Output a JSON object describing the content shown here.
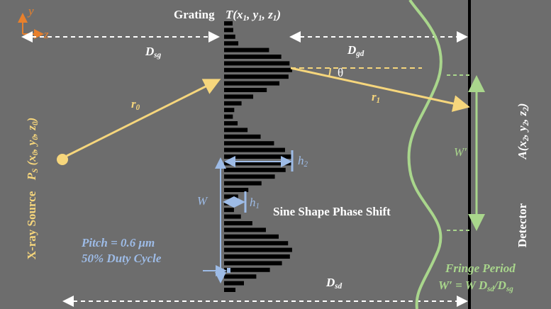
{
  "labels": {
    "axis_y": [
      {
        "text": "y"
      }
    ],
    "axis_z": [
      {
        "text": "z"
      }
    ],
    "grating": [
      {
        "text": "Grating"
      }
    ],
    "grating_coords": [
      {
        "text": "T(x"
      },
      {
        "sub": "1"
      },
      {
        "text": ", y"
      },
      {
        "sub": "1"
      },
      {
        "text": ", z"
      },
      {
        "sub": "1"
      },
      {
        "text": ")"
      }
    ],
    "d_sg": [
      {
        "text": "D"
      },
      {
        "sub": "sg"
      }
    ],
    "d_gd": [
      {
        "text": "D"
      },
      {
        "sub": "gd"
      }
    ],
    "theta": [
      {
        "text": "θ"
      }
    ],
    "r0": [
      {
        "text": "r"
      },
      {
        "sub": "0"
      }
    ],
    "r1": [
      {
        "text": "r"
      },
      {
        "sub": "1"
      }
    ],
    "source": [
      {
        "text": "X-ray Source"
      }
    ],
    "source_coords": [
      {
        "text": "P"
      },
      {
        "sub": "S"
      },
      {
        "text": " (x"
      },
      {
        "sub": "0"
      },
      {
        "text": ", y"
      },
      {
        "sub": "0"
      },
      {
        "text": ", z"
      },
      {
        "sub": "0"
      },
      {
        "text": ")"
      }
    ],
    "h2": [
      {
        "text": "h"
      },
      {
        "sub": "2"
      }
    ],
    "h1": [
      {
        "text": "h"
      },
      {
        "sub": "1"
      }
    ],
    "w": [
      {
        "text": "W"
      }
    ],
    "w_prime": [
      {
        "text": "W′"
      }
    ],
    "phase_shift": [
      {
        "text": "Sine Shape Phase Shift"
      }
    ],
    "pitch": [
      {
        "text": "Pitch = 0.6 μm"
      }
    ],
    "duty": [
      {
        "text": "50% Duty Cycle"
      }
    ],
    "d_sd": [
      {
        "text": "D"
      },
      {
        "sub": "sd"
      }
    ],
    "fringe": [
      {
        "text": "Fringe Period"
      }
    ],
    "fringe_formula": [
      {
        "text": "W′ = W  D"
      },
      {
        "sub": "sd"
      },
      {
        "text": "/D"
      },
      {
        "sub": "sg"
      }
    ],
    "detector": [
      {
        "text": "Detector"
      }
    ],
    "detector_coords": [
      {
        "text": "A(x"
      },
      {
        "sub": "2"
      },
      {
        "text": ", y"
      },
      {
        "sub": "2"
      },
      {
        "text": ", z"
      },
      {
        "sub": "2"
      },
      {
        "text": ")"
      }
    ]
  }
}
